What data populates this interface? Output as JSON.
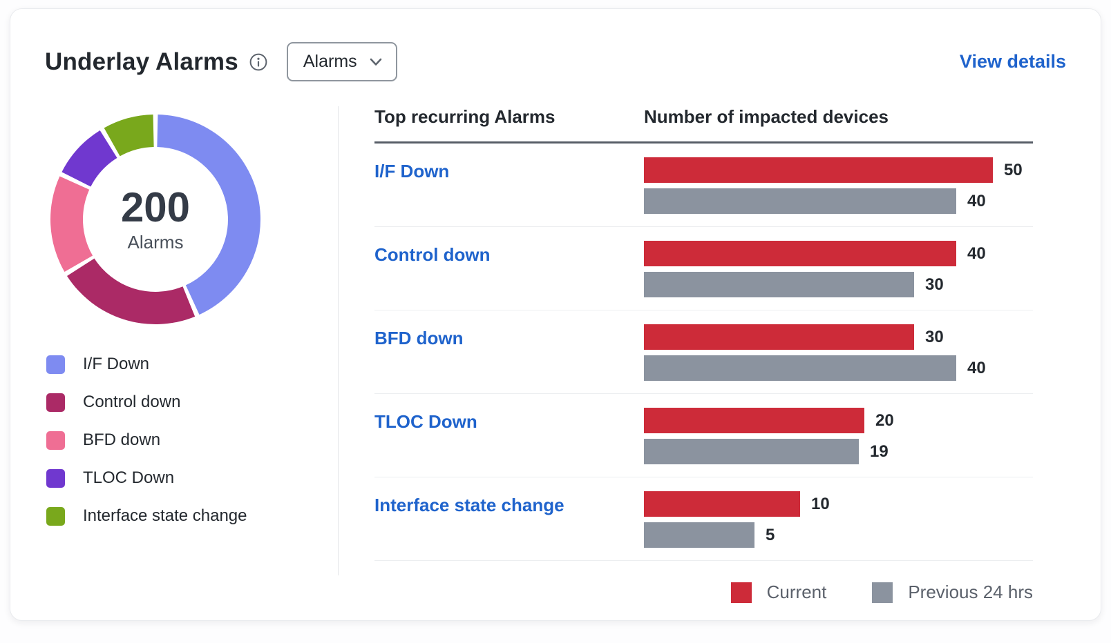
{
  "colors": {
    "link": "#1F63CC",
    "bar_current": "#CD2B39",
    "bar_previous": "#8B939F",
    "header_rule": "#565D66",
    "row_separator": "#ECEEF0"
  },
  "header": {
    "title": "Underlay Alarms",
    "filter_dropdown": {
      "selected": "Alarms"
    },
    "view_details_label": "View details"
  },
  "donut": {
    "total": "200",
    "total_label": "Alarms",
    "segments": [
      {
        "label": "I/F Down",
        "color": "#7E8BF1",
        "percent": 43.5
      },
      {
        "label": "Control down",
        "color": "#AB2A66",
        "percent": 22.8
      },
      {
        "label": "BFD down",
        "color": "#EF6E94",
        "percent": 15.8
      },
      {
        "label": "TLOC Down",
        "color": "#7038CF",
        "percent": 9.4
      },
      {
        "label": "Interface state change",
        "color": "#79A81C",
        "percent": 8.5
      }
    ]
  },
  "table": {
    "col1_header": "Top recurring Alarms",
    "col2_header": "Number of impacted devices",
    "rows": [
      {
        "label": "I/F Down",
        "current": 50,
        "previous": 40
      },
      {
        "label": "Control down",
        "current": 40,
        "previous": 30
      },
      {
        "label": "BFD down",
        "current": 30,
        "previous": 40
      },
      {
        "label": "TLOC Down",
        "current": 20,
        "previous": 19
      },
      {
        "label": "Interface state change",
        "current": 10,
        "previous": 5
      }
    ],
    "legend": {
      "current": "Current",
      "previous": "Previous 24 hrs"
    }
  },
  "chart_data": [
    {
      "type": "pie",
      "title": "Underlay Alarms (donut)",
      "labels": [
        "I/F Down",
        "Control down",
        "BFD down",
        "TLOC Down",
        "Interface state change"
      ],
      "values_percent_estimated": [
        43.5,
        22.8,
        15.8,
        9.4,
        8.5
      ],
      "center_total": 200,
      "center_label": "Alarms",
      "colors": [
        "#7E8BF1",
        "#AB2A66",
        "#EF6E94",
        "#7038CF",
        "#79A81C"
      ],
      "legend_position": "below-left"
    },
    {
      "type": "bar",
      "orientation": "horizontal",
      "categories": [
        "I/F Down",
        "Control down",
        "BFD down",
        "TLOC Down",
        "Interface state change"
      ],
      "series": [
        {
          "name": "Current",
          "values": [
            50,
            40,
            30,
            20,
            10
          ],
          "color": "#CD2B39"
        },
        {
          "name": "Previous 24 hrs",
          "values": [
            40,
            30,
            40,
            19,
            5
          ],
          "color": "#8B939F"
        }
      ],
      "xlabel": "Number of impacted devices",
      "value_labels": true,
      "grid": false,
      "legend_position": "bottom-right",
      "scale_note": "bar lengths appear square-root scaled"
    }
  ]
}
